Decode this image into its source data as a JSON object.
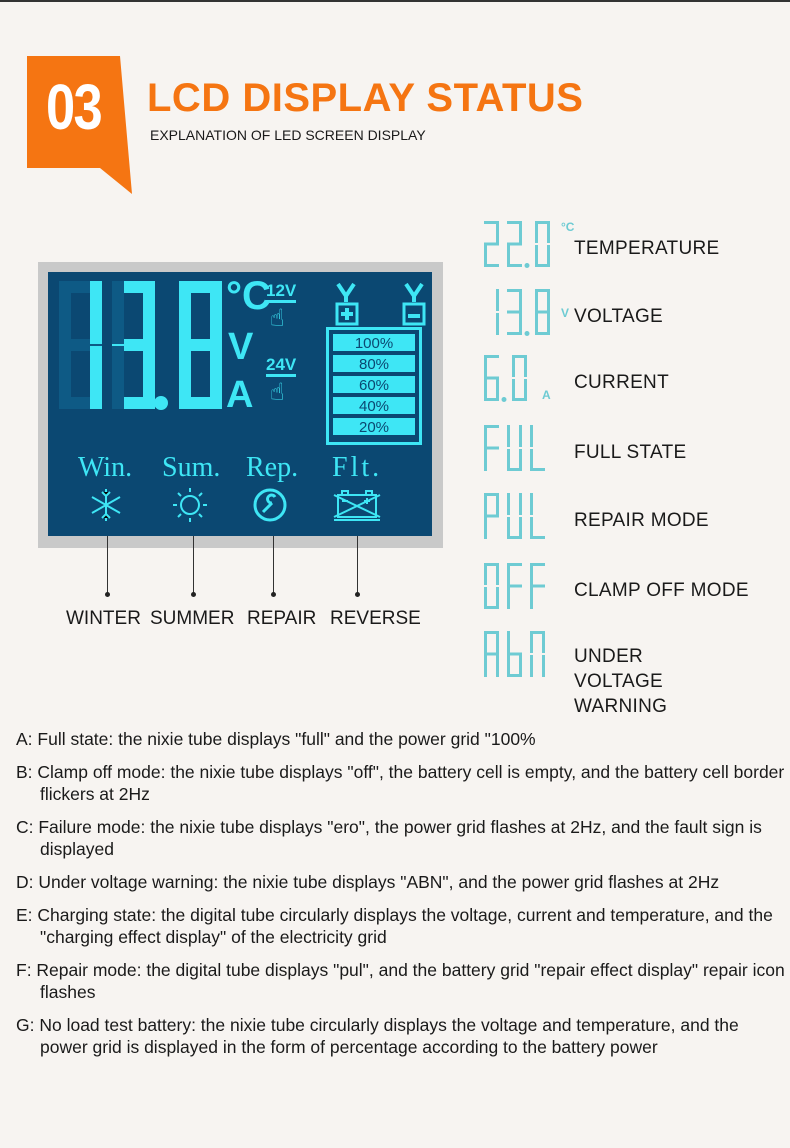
{
  "header": {
    "badge": "03",
    "title": "LCD DISPLAY STATUS",
    "subtitle": "EXPLANATION OF LED SCREEN DISPLAY",
    "accent": "#f57512"
  },
  "lcd": {
    "reading": "13.8",
    "units": [
      "°C",
      "V",
      "A"
    ],
    "voltages": [
      "12V",
      "24V"
    ],
    "battery_levels": [
      "100%",
      "80%",
      "60%",
      "40%",
      "20%"
    ],
    "modes": [
      {
        "abbr": "Win.",
        "label": "WINTER",
        "icon": "snowflake-icon"
      },
      {
        "abbr": "Sum.",
        "label": "SUMMER",
        "icon": "sun-icon"
      },
      {
        "abbr": "Rep.",
        "label": "REPAIR",
        "icon": "wrench-icon"
      },
      {
        "abbr": "Flt.",
        "label": "REVERSE",
        "icon": "battery-fault-icon"
      }
    ],
    "segment_color": "#3ee6f5",
    "panel_color": "#0b4872"
  },
  "states": [
    {
      "display": "22.0",
      "unit": "°C",
      "label": "TEMPERATURE"
    },
    {
      "display": "13.8",
      "unit": "V",
      "label": "VOLTAGE"
    },
    {
      "display": "6.0",
      "unit": "A",
      "label": "CURRENT"
    },
    {
      "display": "FUL",
      "unit": "",
      "label": "FULL STATE"
    },
    {
      "display": "PUL",
      "unit": "",
      "label": "REPAIR MODE"
    },
    {
      "display": "OFF",
      "unit": "",
      "label": "CLAMP OFF MODE"
    },
    {
      "display": "AbN",
      "unit": "",
      "label": "UNDER VOLTAGE WARNING"
    }
  ],
  "notes": [
    "A: Full state: the nixie tube displays \"full\" and the power grid \"100%",
    "B: Clamp off mode: the nixie tube displays \"off\", the battery cell is empty, and the battery cell border flickers at 2Hz",
    "C: Failure mode: the nixie tube displays \"ero\", the power grid flashes at 2Hz, and the fault sign is displayed",
    "D: Under voltage warning: the nixie tube displays \"ABN\", and the power grid flashes at 2Hz",
    "E: Charging state: the digital tube circularly displays the voltage, current and temperature, and the \"charging effect display\" of the electricity grid",
    "F: Repair mode: the digital tube displays \"pul\", and the battery grid \"repair effect display\" repair icon flashes",
    "G: No load test battery: the nixie tube circularly displays the voltage and temperature, and the power grid is displayed in the form of percentage according to the battery power"
  ]
}
